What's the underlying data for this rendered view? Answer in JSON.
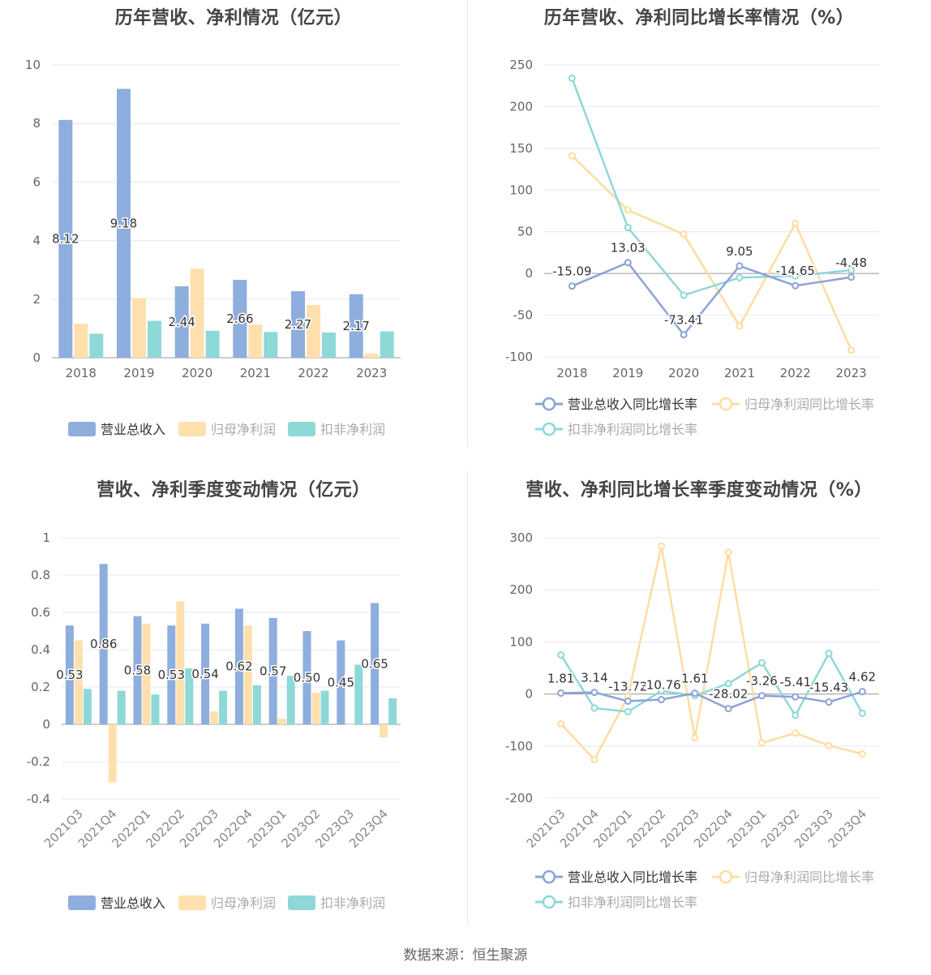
{
  "source_label": "数据来源：恒生聚源",
  "colors": {
    "revenue": "#8eaedd",
    "parent": "#ffe0ad",
    "deducted": "#8fd8d8",
    "revenue_line": "#8ba4d6",
    "parent_line": "#ffdca0",
    "deducted_line": "#8fd8d8"
  },
  "chart_data": [
    {
      "type": "bar",
      "title": "历年营收、净利情况（亿元）",
      "categories": [
        "2018",
        "2019",
        "2020",
        "2021",
        "2022",
        "2023"
      ],
      "ylim": [
        0,
        10
      ],
      "yticks": [
        0,
        2,
        4,
        6,
        8,
        10
      ],
      "ytick_labels": [
        "0",
        "2",
        "4",
        "6",
        "8",
        "10"
      ],
      "series": [
        {
          "name": "营业总收入",
          "values": [
            8.12,
            9.18,
            2.44,
            2.66,
            2.27,
            2.17
          ],
          "labels": [
            "8.12",
            "9.18",
            "2.44",
            "2.66",
            "2.27",
            "2.17"
          ]
        },
        {
          "name": "归母净利润",
          "values": [
            1.16,
            2.04,
            3.04,
            1.13,
            1.8,
            0.14
          ]
        },
        {
          "name": "扣非净利润",
          "values": [
            0.82,
            1.26,
            0.92,
            0.88,
            0.86,
            0.9
          ]
        }
      ],
      "legend": "bottom",
      "grid": true
    },
    {
      "type": "line",
      "title": "历年营收、净利同比增长率情况（%）",
      "categories": [
        "2018",
        "2019",
        "2020",
        "2021",
        "2022",
        "2023"
      ],
      "ylim": [
        -100,
        250
      ],
      "yticks": [
        -100,
        -50,
        0,
        50,
        100,
        150,
        200,
        250
      ],
      "ytick_labels": [
        "-100",
        "-50",
        "0",
        "50",
        "100",
        "150",
        "200",
        "250"
      ],
      "series": [
        {
          "name": "营业总收入同比增长率",
          "values": [
            -15.09,
            13.03,
            -73.41,
            9.05,
            -14.65,
            -4.48
          ],
          "labels": [
            "-15.09",
            "13.03",
            "-73.41",
            "9.05",
            "-14.65",
            "-4.48"
          ]
        },
        {
          "name": "归母净利润同比增长率",
          "values": [
            141,
            76,
            47,
            -63,
            60,
            -92
          ]
        },
        {
          "name": "扣非净利润同比增长率",
          "values": [
            234,
            55,
            -26,
            -5,
            -3,
            4
          ]
        }
      ],
      "legend": "bottom",
      "grid": true
    },
    {
      "type": "bar",
      "title": "营收、净利季度变动情况（亿元）",
      "categories": [
        "2021Q3",
        "2021Q4",
        "2022Q1",
        "2022Q2",
        "2022Q3",
        "2022Q4",
        "2023Q1",
        "2023Q2",
        "2023Q3",
        "2023Q4"
      ],
      "ylim": [
        -0.4,
        1
      ],
      "yticks": [
        -0.4,
        -0.2,
        0,
        0.2,
        0.4,
        0.6,
        0.8,
        1
      ],
      "ytick_labels": [
        "-0.4",
        "-0.2",
        "0",
        "0.2",
        "0.4",
        "0.6",
        "0.8",
        "1"
      ],
      "series": [
        {
          "name": "营业总收入",
          "values": [
            0.53,
            0.86,
            0.58,
            0.53,
            0.54,
            0.62,
            0.57,
            0.5,
            0.45,
            0.65
          ],
          "labels": [
            "0.53",
            "0.86",
            "0.58",
            "0.53",
            "0.54",
            "0.62",
            "0.57",
            "0.50",
            "0.45",
            "0.65"
          ]
        },
        {
          "name": "归母净利润",
          "values": [
            0.45,
            -0.31,
            0.54,
            0.66,
            0.07,
            0.53,
            0.03,
            0.17,
            0.0,
            -0.07
          ]
        },
        {
          "name": "扣非净利润",
          "values": [
            0.19,
            0.18,
            0.16,
            0.3,
            0.18,
            0.21,
            0.26,
            0.18,
            0.32,
            0.14
          ]
        }
      ],
      "legend": "bottom",
      "grid": true
    },
    {
      "type": "line",
      "title": "营收、净利同比增长率季度变动情况（%）",
      "categories": [
        "2021Q3",
        "2021Q4",
        "2022Q1",
        "2022Q2",
        "2022Q3",
        "2022Q4",
        "2023Q1",
        "2023Q2",
        "2023Q3",
        "2023Q4"
      ],
      "ylim": [
        -200,
        300
      ],
      "yticks": [
        -200,
        -100,
        0,
        100,
        200,
        300
      ],
      "ytick_labels": [
        "-200",
        "-100",
        "0",
        "100",
        "200",
        "300"
      ],
      "series": [
        {
          "name": "营业总收入同比增长率",
          "values": [
            1.81,
            3.14,
            -13.72,
            -10.76,
            1.61,
            -28.02,
            -3.26,
            -5.41,
            -15.43,
            4.62
          ],
          "labels": [
            "1.81",
            "3.14",
            "-13.72",
            "-10.76",
            "1.61",
            "-28.02",
            "-3.26",
            "-5.41",
            "-15.43",
            "4.62"
          ]
        },
        {
          "name": "归母净利润同比增长率",
          "values": [
            -57,
            -126,
            -5,
            284,
            -84,
            272,
            -94,
            -75,
            -99,
            -115
          ]
        },
        {
          "name": "扣非净利润同比增长率",
          "values": [
            75,
            -27,
            -34,
            6,
            -3,
            20,
            60,
            -41,
            78,
            -37
          ]
        }
      ],
      "legend": "bottom",
      "grid": true
    }
  ]
}
